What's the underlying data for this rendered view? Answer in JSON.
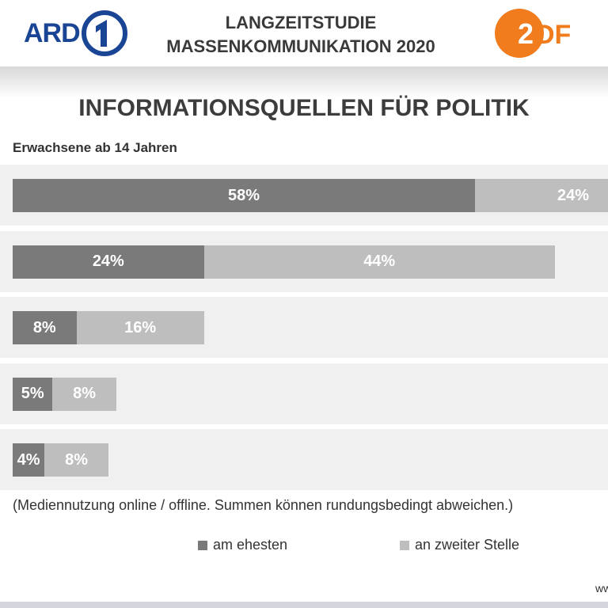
{
  "header": {
    "logo_left": "ARD",
    "logo_right": "ZDF",
    "title_line1": "LANGZEITSTUDIE",
    "title_line2": "MASSENKOMMUNIKATION 2020"
  },
  "footer_url_fragment": "ww",
  "chart_data": {
    "type": "bar",
    "orientation": "horizontal",
    "stacked": true,
    "title": "INFORMATIONSQUELLEN FÜR POLITIK",
    "subtitle": "Erwachsene ab 14 Jahren",
    "note": "(Mediennutzung online / offline. Summen können rundungsbedingt abweichen.)",
    "categories": [
      "",
      "",
      "",
      "",
      ""
    ],
    "series": [
      {
        "name": "am ehesten",
        "color": "#7a7a7a",
        "values": [
          58,
          24,
          8,
          5,
          4
        ],
        "labels": [
          "58%",
          "24%",
          "8%",
          "5%",
          "4%"
        ]
      },
      {
        "name": "an zweiter Stelle",
        "color": "#bebebe",
        "values": [
          24,
          44,
          16,
          8,
          8
        ],
        "labels": [
          "24%",
          "44%",
          "16%",
          "8%",
          "8%"
        ]
      }
    ],
    "legend_position": "bottom",
    "grid": false
  }
}
